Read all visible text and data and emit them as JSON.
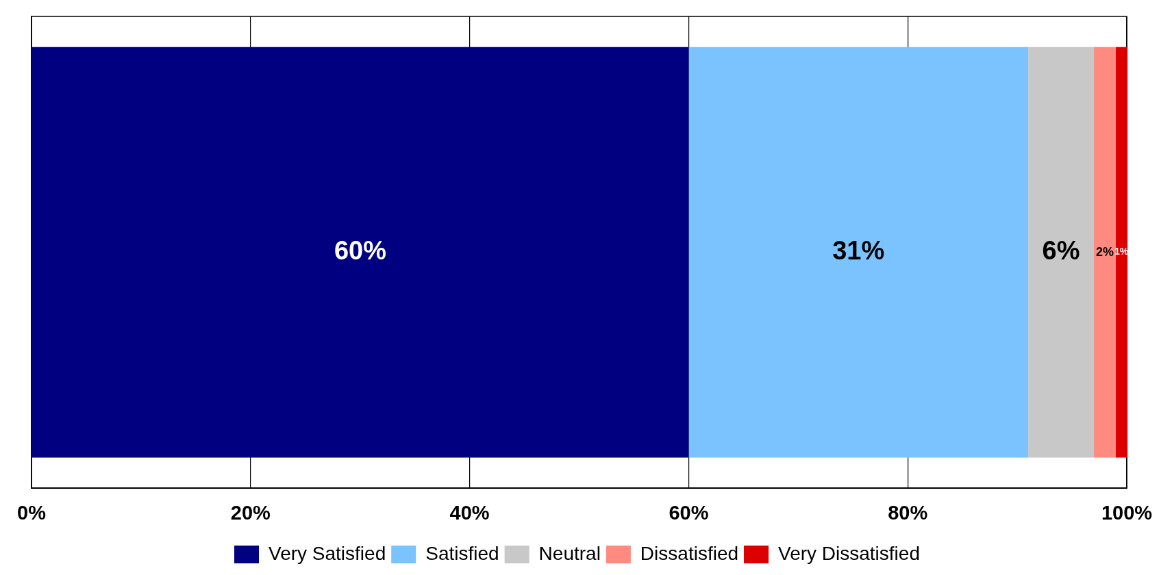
{
  "chart_data": {
    "type": "bar",
    "orientation": "horizontal",
    "stacked": true,
    "categories": [
      null
    ],
    "series": [
      {
        "name": "Very Satisfied",
        "color": "#000080",
        "values": [
          60
        ],
        "value_labels": [
          "60%"
        ]
      },
      {
        "name": "Satisfied",
        "color": "#7ac3ff",
        "values": [
          31
        ],
        "value_labels": [
          "31%"
        ]
      },
      {
        "name": "Neutral",
        "color": "#c8c8c8",
        "values": [
          6
        ],
        "value_labels": [
          "6%"
        ]
      },
      {
        "name": "Dissatisfied",
        "color": "#ff8a80",
        "values": [
          2
        ],
        "value_labels": [
          "2%"
        ]
      },
      {
        "name": "Very Dissatisfied",
        "color": "#dd0000",
        "values": [
          1
        ],
        "value_labels": [
          "1%"
        ]
      }
    ],
    "xlim": [
      0,
      100
    ],
    "xticks": [
      {
        "value": 0,
        "label": "0%"
      },
      {
        "value": 20,
        "label": "20%"
      },
      {
        "value": 40,
        "label": "40%"
      },
      {
        "value": 60,
        "label": "60%"
      },
      {
        "value": 80,
        "label": "80%"
      },
      {
        "value": 100,
        "label": "100%"
      }
    ],
    "grid": "x",
    "legend": "bottom"
  }
}
